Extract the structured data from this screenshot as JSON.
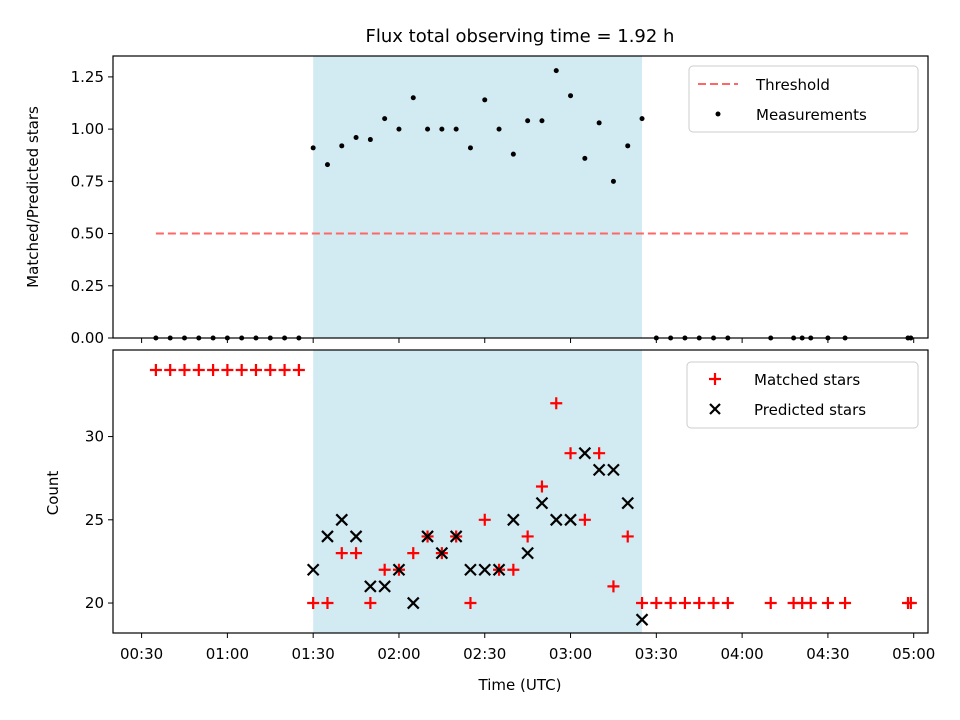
{
  "chart_data": [
    {
      "type": "scatter",
      "title": "Flux total observing time = 1.92 h",
      "xlabel": "",
      "ylabel": "Matched/Predicted stars",
      "x_unit": "time (UTC, HH:MM)",
      "xlim": [
        "00:20",
        "05:05"
      ],
      "ylim": [
        0,
        1.35
      ],
      "yticks": [
        0.0,
        0.25,
        0.5,
        0.75,
        1.0,
        1.25
      ],
      "ytick_labels": [
        "0.00",
        "0.25",
        "0.50",
        "0.75",
        "1.00",
        "1.25"
      ],
      "shaded_interval": [
        "01:30",
        "03:25"
      ],
      "shade_color": "#add8e6",
      "legend": {
        "position": "upper right",
        "entries": [
          "Threshold",
          "Measurements"
        ]
      },
      "threshold": {
        "name": "Threshold",
        "y": 0.5,
        "x_range": [
          "00:35",
          "04:58"
        ],
        "color": "#ff6666",
        "style": "dashed"
      },
      "series": [
        {
          "name": "Measurements",
          "color": "#000000",
          "marker": "dot",
          "points": [
            [
              "00:35",
              0
            ],
            [
              "00:40",
              0
            ],
            [
              "00:45",
              0
            ],
            [
              "00:50",
              0
            ],
            [
              "00:55",
              0
            ],
            [
              "01:00",
              0
            ],
            [
              "01:05",
              0
            ],
            [
              "01:10",
              0
            ],
            [
              "01:15",
              0
            ],
            [
              "01:20",
              0
            ],
            [
              "01:25",
              0
            ],
            [
              "01:30",
              0.91
            ],
            [
              "01:35",
              0.83
            ],
            [
              "01:40",
              0.92
            ],
            [
              "01:45",
              0.96
            ],
            [
              "01:50",
              0.95
            ],
            [
              "01:55",
              1.05
            ],
            [
              "02:00",
              1.0
            ],
            [
              "02:05",
              1.15
            ],
            [
              "02:10",
              1.0
            ],
            [
              "02:15",
              1.0
            ],
            [
              "02:20",
              1.0
            ],
            [
              "02:25",
              0.91
            ],
            [
              "02:30",
              1.14
            ],
            [
              "02:35",
              1.0
            ],
            [
              "02:40",
              0.88
            ],
            [
              "02:45",
              1.04
            ],
            [
              "02:50",
              1.04
            ],
            [
              "02:55",
              1.28
            ],
            [
              "03:00",
              1.16
            ],
            [
              "03:05",
              0.86
            ],
            [
              "03:10",
              1.03
            ],
            [
              "03:15",
              0.75
            ],
            [
              "03:20",
              0.92
            ],
            [
              "03:25",
              1.05
            ],
            [
              "03:30",
              0
            ],
            [
              "03:35",
              0
            ],
            [
              "03:40",
              0
            ],
            [
              "03:45",
              0
            ],
            [
              "03:50",
              0
            ],
            [
              "03:55",
              0
            ],
            [
              "04:10",
              0
            ],
            [
              "04:18",
              0
            ],
            [
              "04:21",
              0
            ],
            [
              "04:24",
              0
            ],
            [
              "04:30",
              0
            ],
            [
              "04:36",
              0
            ],
            [
              "04:58",
              0
            ],
            [
              "04:59",
              0
            ]
          ]
        }
      ]
    },
    {
      "type": "scatter",
      "title": "",
      "xlabel": "Time (UTC)",
      "ylabel": "Count",
      "x_unit": "time (UTC, HH:MM)",
      "xlim": [
        "00:20",
        "05:05"
      ],
      "ylim": [
        18.2,
        35.2
      ],
      "yticks": [
        20,
        25,
        30
      ],
      "ytick_labels": [
        "20",
        "25",
        "30"
      ],
      "xtick_labels": [
        "00:30",
        "01:00",
        "01:30",
        "02:00",
        "02:30",
        "03:00",
        "03:30",
        "04:00",
        "04:30",
        "05:00"
      ],
      "shaded_interval": [
        "01:30",
        "03:25"
      ],
      "shade_color": "#add8e6",
      "legend": {
        "position": "upper right",
        "entries": [
          "Matched stars",
          "Predicted stars"
        ]
      },
      "series": [
        {
          "name": "Matched stars",
          "color": "#ff0000",
          "marker": "plus",
          "points": [
            [
              "00:35",
              34
            ],
            [
              "00:40",
              34
            ],
            [
              "00:45",
              34
            ],
            [
              "00:50",
              34
            ],
            [
              "00:55",
              34
            ],
            [
              "01:00",
              34
            ],
            [
              "01:05",
              34
            ],
            [
              "01:10",
              34
            ],
            [
              "01:15",
              34
            ],
            [
              "01:20",
              34
            ],
            [
              "01:25",
              34
            ],
            [
              "01:30",
              20
            ],
            [
              "01:35",
              20
            ],
            [
              "01:40",
              23
            ],
            [
              "01:45",
              23
            ],
            [
              "01:50",
              20
            ],
            [
              "01:55",
              22
            ],
            [
              "02:00",
              22
            ],
            [
              "02:05",
              23
            ],
            [
              "02:10",
              24
            ],
            [
              "02:15",
              23
            ],
            [
              "02:20",
              24
            ],
            [
              "02:25",
              20
            ],
            [
              "02:30",
              25
            ],
            [
              "02:35",
              22
            ],
            [
              "02:40",
              22
            ],
            [
              "02:45",
              24
            ],
            [
              "02:50",
              27
            ],
            [
              "02:55",
              32
            ],
            [
              "03:00",
              29
            ],
            [
              "03:05",
              25
            ],
            [
              "03:10",
              29
            ],
            [
              "03:15",
              21
            ],
            [
              "03:20",
              24
            ],
            [
              "03:25",
              20
            ],
            [
              "03:30",
              20
            ],
            [
              "03:35",
              20
            ],
            [
              "03:40",
              20
            ],
            [
              "03:45",
              20
            ],
            [
              "03:50",
              20
            ],
            [
              "03:55",
              20
            ],
            [
              "04:10",
              20
            ],
            [
              "04:18",
              20
            ],
            [
              "04:21",
              20
            ],
            [
              "04:24",
              20
            ],
            [
              "04:30",
              20
            ],
            [
              "04:36",
              20
            ],
            [
              "04:58",
              20
            ],
            [
              "04:59",
              20
            ]
          ]
        },
        {
          "name": "Predicted stars",
          "color": "#000000",
          "marker": "x",
          "points": [
            [
              "01:30",
              22
            ],
            [
              "01:35",
              24
            ],
            [
              "01:40",
              25
            ],
            [
              "01:45",
              24
            ],
            [
              "01:50",
              21
            ],
            [
              "01:55",
              21
            ],
            [
              "02:00",
              22
            ],
            [
              "02:05",
              20
            ],
            [
              "02:10",
              24
            ],
            [
              "02:15",
              23
            ],
            [
              "02:20",
              24
            ],
            [
              "02:25",
              22
            ],
            [
              "02:30",
              22
            ],
            [
              "02:35",
              22
            ],
            [
              "02:40",
              25
            ],
            [
              "02:45",
              23
            ],
            [
              "02:50",
              26
            ],
            [
              "02:55",
              25
            ],
            [
              "03:00",
              25
            ],
            [
              "03:05",
              29
            ],
            [
              "03:10",
              28
            ],
            [
              "03:15",
              28
            ],
            [
              "03:20",
              26
            ],
            [
              "03:25",
              19
            ]
          ]
        }
      ]
    }
  ]
}
